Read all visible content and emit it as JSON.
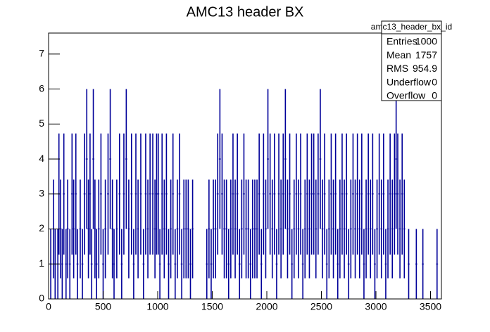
{
  "chart_data": {
    "type": "errorbar",
    "title": "AMC13 header BX",
    "color": "#000099",
    "xlim": [
      0,
      3600
    ],
    "ylim": [
      0,
      7.6
    ],
    "xticks": [
      0,
      500,
      1000,
      1500,
      2000,
      2500,
      3000,
      3500
    ],
    "yticks": [
      0,
      1,
      2,
      3,
      4,
      5,
      6,
      7
    ],
    "x": [
      20,
      45,
      60,
      85,
      95,
      110,
      125,
      140,
      160,
      175,
      195,
      215,
      230,
      250,
      265,
      290,
      310,
      330,
      350,
      365,
      380,
      395,
      410,
      425,
      440,
      460,
      480,
      500,
      520,
      545,
      565,
      585,
      600,
      625,
      650,
      670,
      690,
      712,
      735,
      760,
      780,
      800,
      820,
      845,
      870,
      890,
      910,
      930,
      955,
      975,
      990,
      1005,
      1020,
      1040,
      1060,
      1080,
      1100,
      1120,
      1140,
      1160,
      1180,
      1200,
      1220,
      1240,
      1260,
      1280,
      1300,
      1320,
      1450,
      1470,
      1490,
      1510,
      1530,
      1550,
      1570,
      1590,
      1610,
      1630,
      1650,
      1670,
      1690,
      1710,
      1730,
      1750,
      1770,
      1790,
      1810,
      1830,
      1850,
      1870,
      1890,
      1910,
      1930,
      1950,
      1970,
      1990,
      2010,
      2030,
      2050,
      2070,
      2090,
      2110,
      2130,
      2150,
      2170,
      2190,
      2210,
      2230,
      2250,
      2270,
      2290,
      2310,
      2330,
      2350,
      2370,
      2390,
      2410,
      2430,
      2450,
      2470,
      2490,
      2510,
      2530,
      2550,
      2570,
      2590,
      2610,
      2630,
      2650,
      2670,
      2690,
      2710,
      2730,
      2750,
      2770,
      2790,
      2810,
      2830,
      2850,
      2870,
      2890,
      2910,
      2930,
      2950,
      2970,
      2990,
      3010,
      3030,
      3050,
      3070,
      3090,
      3110,
      3130,
      3150,
      3170,
      3185,
      3200,
      3220,
      3240,
      3260,
      3300,
      3370,
      3430,
      3560
    ],
    "values": [
      1,
      2,
      1,
      1,
      3,
      2,
      1,
      3,
      1,
      2,
      1,
      3,
      2,
      3,
      1,
      2,
      1,
      3,
      4,
      2,
      3,
      1,
      4,
      2,
      1,
      2,
      3,
      1,
      2,
      3,
      4,
      2,
      1,
      2,
      3,
      1,
      3,
      4,
      2,
      3,
      1,
      3,
      2,
      3,
      1,
      3,
      2,
      3,
      3,
      2,
      3,
      3,
      1,
      3,
      2,
      3,
      1,
      2,
      3,
      1,
      2,
      3,
      1,
      2,
      2,
      2,
      1,
      2,
      1,
      2,
      1,
      2,
      2,
      3,
      4,
      3,
      2,
      2,
      1,
      2,
      3,
      2,
      3,
      1,
      2,
      3,
      2,
      2,
      1,
      2,
      2,
      2,
      3,
      1,
      3,
      2,
      4,
      3,
      2,
      3,
      1,
      3,
      2,
      3,
      4,
      2,
      3,
      1,
      2,
      3,
      2,
      3,
      1,
      2,
      3,
      2,
      3,
      3,
      2,
      3,
      4,
      2,
      3,
      1,
      2,
      3,
      2,
      3,
      1,
      2,
      3,
      2,
      3,
      1,
      2,
      3,
      2,
      3,
      2,
      3,
      1,
      2,
      3,
      2,
      3,
      1,
      2,
      3,
      2,
      3,
      1,
      2,
      3,
      2,
      3,
      4,
      3,
      2,
      3,
      2,
      1,
      1,
      1,
      1
    ],
    "errors": [
      1,
      1.41,
      1,
      1,
      1.73,
      1.41,
      1,
      1.73,
      1,
      1.41,
      1,
      1.73,
      1.41,
      1.73,
      1,
      1.41,
      1,
      1.73,
      2,
      1.41,
      1.73,
      1,
      2,
      1.41,
      1,
      1.41,
      1.73,
      1,
      1.41,
      1.73,
      2,
      1.41,
      1,
      1.41,
      1.73,
      1,
      1.73,
      2,
      1.41,
      1.73,
      1,
      1.73,
      1.41,
      1.73,
      1,
      1.73,
      1.41,
      1.73,
      1.73,
      1.41,
      1.73,
      1.73,
      1,
      1.73,
      1.41,
      1.73,
      1,
      1.41,
      1.73,
      1,
      1.41,
      1.73,
      1,
      1.41,
      1.41,
      1.41,
      1,
      1.41,
      1,
      1.41,
      1,
      1.41,
      1.41,
      1.73,
      2,
      1.73,
      1.41,
      1.41,
      1,
      1.41,
      1.73,
      1.41,
      1.73,
      1,
      1.41,
      1.73,
      1.41,
      1.41,
      1,
      1.41,
      1.41,
      1.41,
      1.73,
      1,
      1.73,
      1.41,
      2,
      1.73,
      1.41,
      1.73,
      1,
      1.73,
      1.41,
      1.73,
      2,
      1.41,
      1.73,
      1,
      1.41,
      1.73,
      1.41,
      1.73,
      1,
      1.41,
      1.73,
      1.41,
      1.73,
      1.73,
      1.41,
      1.73,
      2,
      1.41,
      1.73,
      1,
      1.41,
      1.73,
      1.41,
      1.73,
      1,
      1.41,
      1.73,
      1.41,
      1.73,
      1,
      1.41,
      1.73,
      1.41,
      1.73,
      1.41,
      1.73,
      1,
      1.41,
      1.73,
      1.41,
      1.73,
      1,
      1.41,
      1.73,
      1.41,
      1.73,
      1,
      1.41,
      1.73,
      1.41,
      1.73,
      2,
      1.73,
      1.41,
      1.73,
      1.41,
      1,
      1,
      1,
      1
    ],
    "stats": {
      "name": "amc13_header_bx_id",
      "rows": [
        [
          "Entries",
          1000
        ],
        [
          "Mean",
          1757
        ],
        [
          "RMS",
          954.9
        ],
        [
          "Underflow",
          0
        ],
        [
          "Overflow",
          0
        ]
      ]
    }
  }
}
